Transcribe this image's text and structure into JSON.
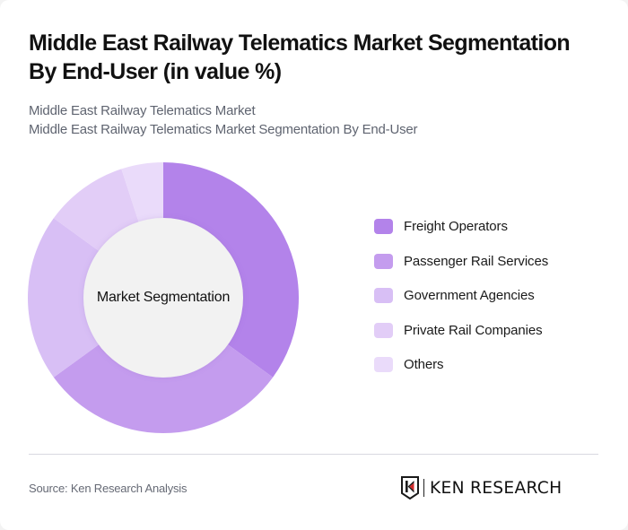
{
  "header": {
    "title": "Middle East Railway Telematics Market Segmentation By End-User (in value %)",
    "subtitle_line1": "Middle East Railway Telematics Market",
    "subtitle_line2": "Middle East Railway Telematics Market Segmentation By End-User"
  },
  "chart": {
    "center_label": "Market Segmentation",
    "inner_fill": "#f2f2f2"
  },
  "legend": {
    "items": [
      {
        "label": "Freight Operators",
        "color": "#b383ea"
      },
      {
        "label": "Passenger Rail Services",
        "color": "#c49cee"
      },
      {
        "label": "Government Agencies",
        "color": "#d8bff5"
      },
      {
        "label": "Private Rail Companies",
        "color": "#e2cdf7"
      },
      {
        "label": "Others",
        "color": "#eadbfa"
      }
    ]
  },
  "footer": {
    "source": "Source: Ken Research Analysis",
    "logo_text": "KEN RESEARCH"
  },
  "chart_data": {
    "type": "pie",
    "variant": "donut",
    "title": "Middle East Railway Telematics Market Segmentation By End-User (in value %)",
    "subtitle": "Middle East Railway Telematics Market Segmentation By End-User",
    "center_label": "Market Segmentation",
    "categories": [
      "Freight Operators",
      "Passenger Rail Services",
      "Government Agencies",
      "Private Rail Companies",
      "Others"
    ],
    "values": [
      35,
      30,
      20,
      10,
      5
    ],
    "unit": "%",
    "colors": [
      "#b383ea",
      "#c49cee",
      "#d8bff5",
      "#e2cdf7",
      "#eadbfa"
    ],
    "start_angle": "top (12 o'clock), clockwise",
    "legend_position": "right",
    "data_labels": false
  }
}
